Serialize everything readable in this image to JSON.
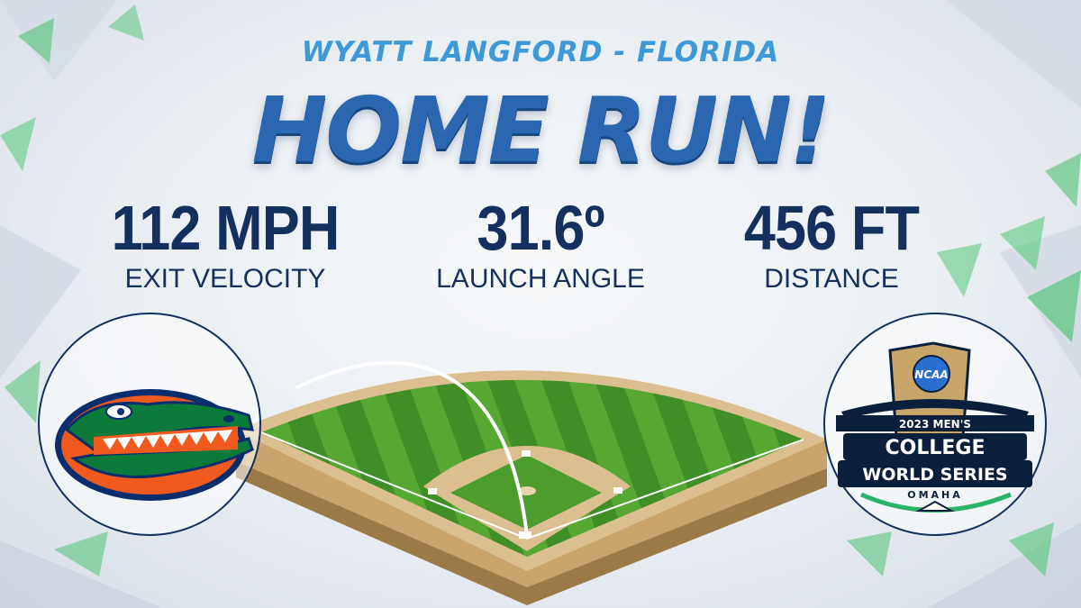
{
  "graphic": {
    "player_line": "WYATT LANGFORD - FLORIDA",
    "headline": "HOME RUN!"
  },
  "stats": [
    {
      "value": "112 MPH",
      "label": "EXIT VELOCITY"
    },
    {
      "value": "31.6º",
      "label": "LAUNCH ANGLE"
    },
    {
      "value": "456 FT",
      "label": "DISTANCE"
    }
  ],
  "logos": {
    "left": {
      "icon": "florida-gators-logo"
    },
    "right": {
      "icon": "college-world-series-logo",
      "badge": "NCAA",
      "line1": "2023 MEN'S",
      "line2": "COLLEGE",
      "line3": "WORLD SERIES",
      "line4": "OMAHA"
    }
  },
  "colors": {
    "accent_light_blue": "#3e9ad6",
    "headline_blue": "#2a67b0",
    "navy": "#14305e",
    "field_green": "#4a9a2e",
    "dirt": "#d8b98a",
    "gators_orange": "#f05a1e",
    "gators_green": "#0b7a3a",
    "gators_blue": "#0a2d6e"
  }
}
